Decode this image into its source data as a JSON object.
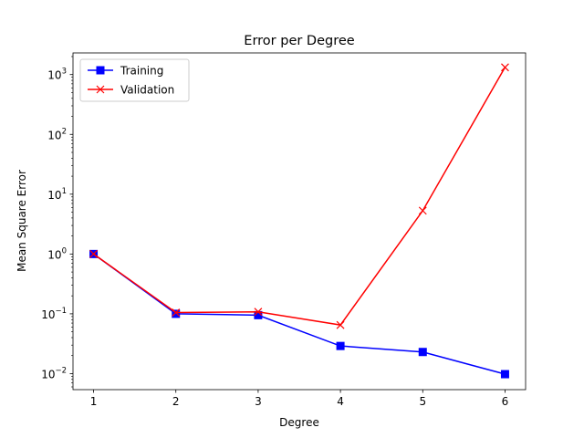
{
  "chart_data": {
    "type": "line",
    "title": "Error per Degree",
    "xlabel": "Degree",
    "ylabel": "Mean Square Error",
    "x": [
      1,
      2,
      3,
      4,
      5,
      6
    ],
    "xticks": [
      1,
      2,
      3,
      4,
      5,
      6
    ],
    "xlim": [
      0.75,
      6.25
    ],
    "yscale": "log",
    "ylim": [
      0.0054,
      2300
    ],
    "yticks": [
      0.01,
      0.1,
      1,
      10,
      100,
      1000
    ],
    "ytick_labels": [
      {
        "base": "10",
        "exp": "−2"
      },
      {
        "base": "10",
        "exp": "−1"
      },
      {
        "base": "10",
        "exp": "0"
      },
      {
        "base": "10",
        "exp": "1"
      },
      {
        "base": "10",
        "exp": "2"
      },
      {
        "base": "10",
        "exp": "3"
      }
    ],
    "grid": false,
    "legend": "top-left",
    "series": [
      {
        "name": "Training",
        "color": "#0000ff",
        "marker": "square",
        "values": [
          1.0,
          0.1,
          0.095,
          0.029,
          0.023,
          0.0098
        ]
      },
      {
        "name": "Validation",
        "color": "#ff0000",
        "marker": "x",
        "values": [
          1.0,
          0.105,
          0.108,
          0.065,
          5.3,
          1320
        ]
      }
    ]
  }
}
